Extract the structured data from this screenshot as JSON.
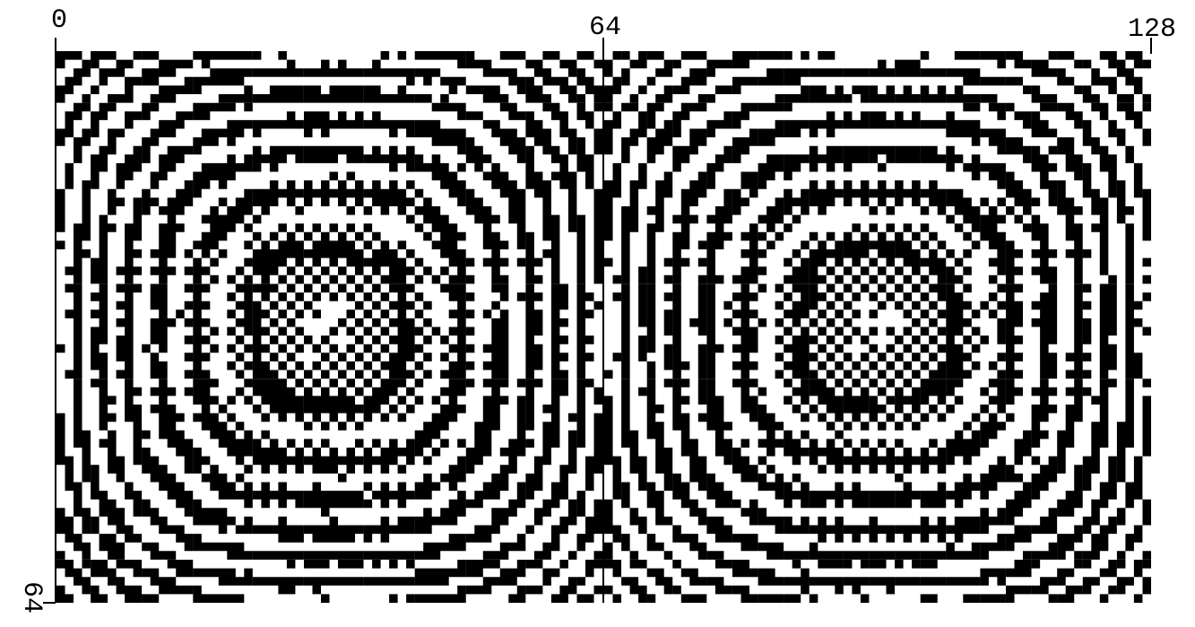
{
  "axis": {
    "top_labels": [
      "0",
      "64",
      "128"
    ],
    "left_label": "64"
  }
}
